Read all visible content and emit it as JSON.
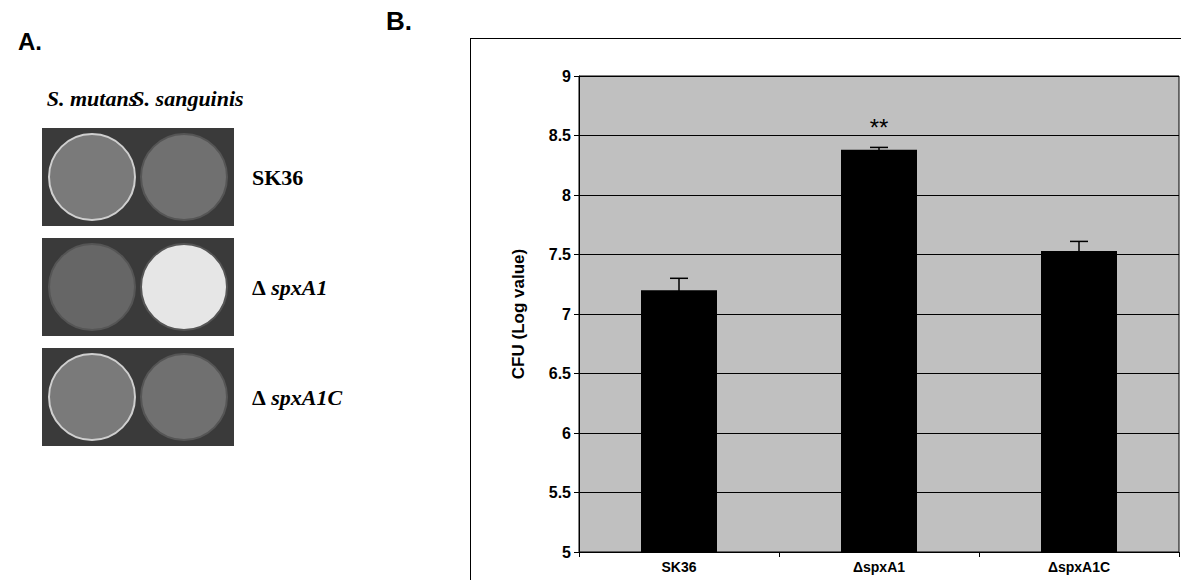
{
  "panel_a": {
    "label": "A.",
    "columns": [
      "S. mutans",
      "S. sanguinis"
    ],
    "rows": [
      "SK36",
      "Δ spxA1",
      "Δ spxA1C"
    ]
  },
  "chart_data": {
    "type": "bar",
    "panel_label": "B.",
    "categories": [
      "SK36",
      "ΔspxA1",
      "ΔspxA1C"
    ],
    "values": [
      7.2,
      8.38,
      7.53
    ],
    "errors": [
      0.1,
      0.02,
      0.08
    ],
    "color": "#000000",
    "ylabel": "CFU (Log value)",
    "ylim": [
      5,
      9
    ],
    "yticks": [
      5,
      5.5,
      6,
      6.5,
      7,
      7.5,
      8,
      8.5,
      9
    ],
    "grid": true,
    "annotations": [
      {
        "category": "ΔspxA1",
        "text": "**"
      }
    ]
  }
}
